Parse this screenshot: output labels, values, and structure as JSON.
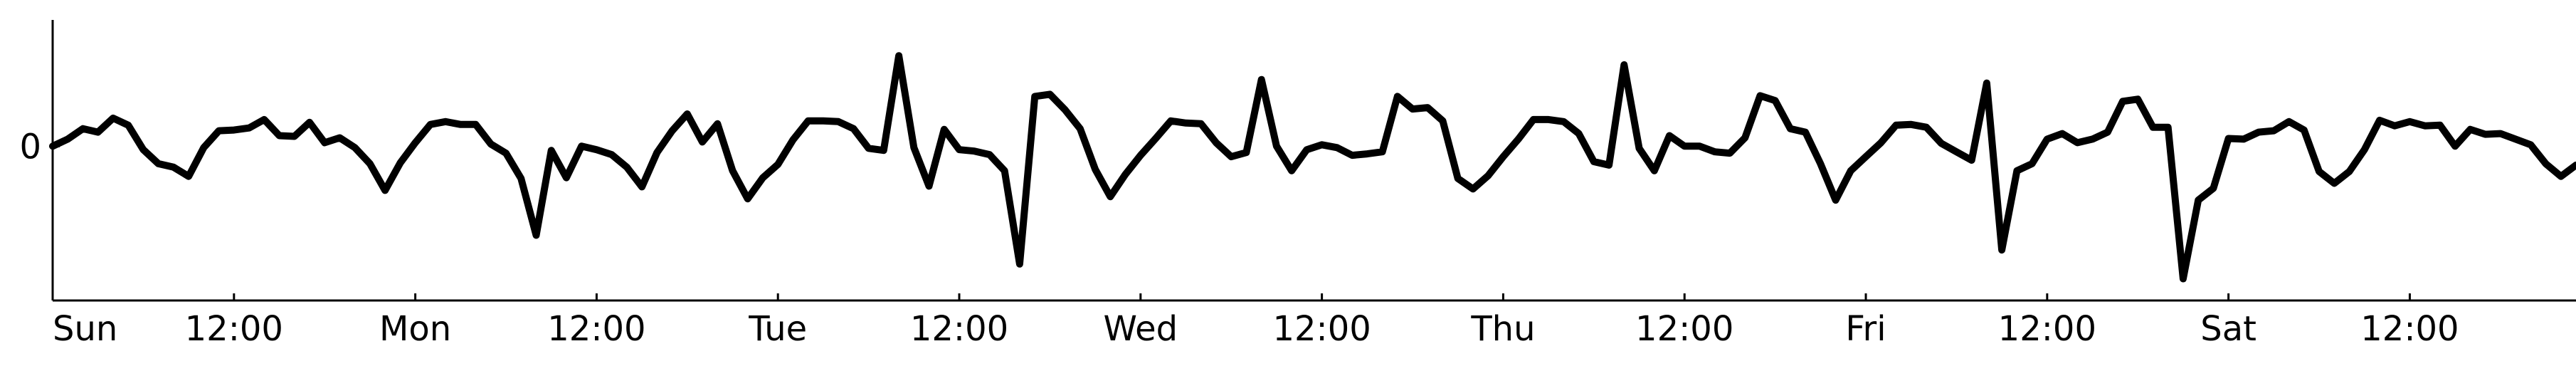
{
  "chart_data": {
    "type": "line",
    "title": "",
    "xlabel": "",
    "ylabel": "",
    "grid": false,
    "x_ticks": [
      {
        "at": 0,
        "label": "Sun"
      },
      {
        "at": 12,
        "label": "12:00"
      },
      {
        "at": 24,
        "label": "Mon"
      },
      {
        "at": 36,
        "label": "12:00"
      },
      {
        "at": 48,
        "label": "Tue"
      },
      {
        "at": 60,
        "label": "12:00"
      },
      {
        "at": 72,
        "label": "Wed"
      },
      {
        "at": 84,
        "label": "12:00"
      },
      {
        "at": 96,
        "label": "Thu"
      },
      {
        "at": 108,
        "label": "12:00"
      },
      {
        "at": 120,
        "label": "Fri"
      },
      {
        "at": 132,
        "label": "12:00"
      },
      {
        "at": 144,
        "label": "Sat"
      },
      {
        "at": 156,
        "label": "12:00"
      }
    ],
    "y_ticks": [
      {
        "at": 0,
        "label": "0"
      }
    ],
    "xlim": [
      0,
      167
    ],
    "ylim": [
      -2.2,
      1.8
    ],
    "series": [
      {
        "color": "#000000",
        "x": [
          0,
          1,
          2,
          3,
          4,
          5,
          6,
          7,
          8,
          9,
          10,
          11,
          12,
          13,
          14,
          15,
          16,
          17,
          18,
          19,
          20,
          21,
          22,
          23,
          24,
          25,
          26,
          27,
          28,
          29,
          30,
          31,
          32,
          33,
          34,
          35,
          36,
          37,
          38,
          39,
          40,
          41,
          42,
          43,
          44,
          45,
          46,
          47,
          48,
          49,
          50,
          51,
          52,
          53,
          54,
          55,
          56,
          57,
          58,
          59,
          60,
          61,
          62,
          63,
          64,
          65,
          66,
          67,
          68,
          69,
          70,
          71,
          72,
          73,
          74,
          75,
          76,
          77,
          78,
          79,
          80,
          81,
          82,
          83,
          84,
          85,
          86,
          87,
          88,
          89,
          90,
          91,
          92,
          93,
          94,
          95,
          96,
          97,
          98,
          99,
          100,
          101,
          102,
          103,
          104,
          105,
          106,
          107,
          108,
          109,
          110,
          111,
          112,
          113,
          114,
          115,
          116,
          117,
          118,
          119,
          120,
          121,
          122,
          123,
          124,
          125,
          126,
          127,
          128,
          129,
          130,
          131,
          132,
          133,
          134,
          135,
          136,
          137,
          138,
          139,
          140,
          141,
          142,
          143,
          144,
          145,
          146,
          147,
          148,
          149,
          150,
          151,
          152,
          153,
          154,
          155,
          156,
          157,
          158,
          159,
          160,
          161,
          162,
          163,
          164,
          165,
          166,
          167
        ],
        "values": [
          0.0,
          0.1,
          0.25,
          0.2,
          0.4,
          0.3,
          -0.05,
          -0.25,
          -0.3,
          -0.43,
          -0.02,
          0.22,
          0.23,
          0.26,
          0.38,
          0.15,
          0.14,
          0.34,
          0.05,
          0.12,
          -0.02,
          -0.25,
          -0.63,
          -0.24,
          0.05,
          0.31,
          0.35,
          0.31,
          0.31,
          0.03,
          -0.1,
          -0.46,
          -1.27,
          -0.06,
          -0.45,
          0.0,
          -0.05,
          -0.12,
          -0.3,
          -0.58,
          -0.09,
          0.22,
          0.46,
          0.06,
          0.32,
          -0.35,
          -0.75,
          -0.45,
          -0.26,
          0.09,
          0.36,
          0.36,
          0.35,
          0.25,
          -0.03,
          -0.06,
          1.29,
          -0.02,
          -0.57,
          0.24,
          -0.05,
          -0.07,
          -0.12,
          -0.35,
          -1.68,
          0.71,
          0.74,
          0.52,
          0.25,
          -0.33,
          -0.72,
          -0.4,
          -0.13,
          0.11,
          0.36,
          0.33,
          0.32,
          0.05,
          -0.15,
          -0.09,
          0.95,
          0.0,
          -0.35,
          -0.05,
          0.02,
          -0.02,
          -0.13,
          -0.11,
          -0.08,
          0.71,
          0.53,
          0.55,
          0.36,
          -0.46,
          -0.61,
          -0.42,
          -0.15,
          0.1,
          0.38,
          0.38,
          0.35,
          0.18,
          -0.22,
          -0.27,
          1.16,
          -0.03,
          -0.35,
          0.15,
          0.0,
          0.0,
          -0.08,
          -0.1,
          0.12,
          0.72,
          0.65,
          0.25,
          0.2,
          -0.25,
          -0.77,
          -0.35,
          -0.15,
          0.05,
          0.3,
          0.31,
          0.27,
          0.04,
          -0.08,
          -0.2,
          0.9,
          -1.48,
          -0.35,
          -0.25,
          0.1,
          0.18,
          0.05,
          0.1,
          0.2,
          0.64,
          0.67,
          0.27,
          0.27,
          -1.89,
          -0.77,
          -0.6,
          0.11,
          0.1,
          0.2,
          0.22,
          0.35,
          0.23,
          -0.36,
          -0.53,
          -0.36,
          -0.05,
          0.37,
          0.29,
          0.35,
          0.29,
          0.3,
          0.0,
          0.24,
          0.17,
          0.18,
          0.1,
          0.02,
          -0.25,
          -0.43,
          -0.27
        ]
      }
    ]
  }
}
